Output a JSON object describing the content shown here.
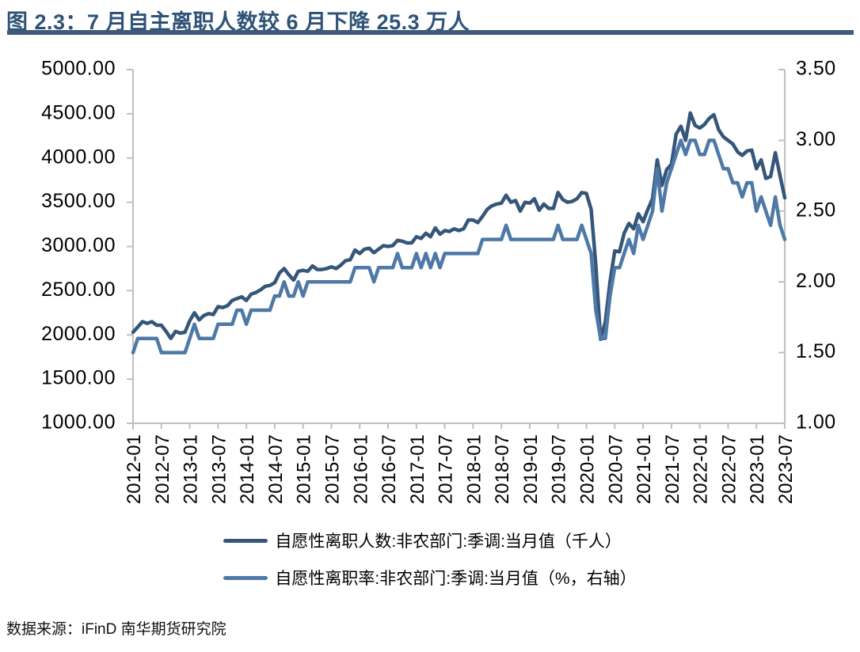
{
  "header": {
    "title": "图 2.3：7 月自主离职人数较 6 月下降 25.3 万人"
  },
  "chart_data": {
    "type": "line",
    "x_start": "2012-01",
    "x_end": "2023-07",
    "x_frequency": "monthly",
    "x_tick_labels": [
      "2012-01",
      "2012-07",
      "2013-01",
      "2013-07",
      "2014-01",
      "2014-07",
      "2015-01",
      "2015-07",
      "2016-01",
      "2016-07",
      "2017-01",
      "2017-07",
      "2018-01",
      "2018-07",
      "2019-01",
      "2019-07",
      "2020-01",
      "2020-07",
      "2021-01",
      "2021-07",
      "2022-01",
      "2022-07",
      "2023-01",
      "2023-07"
    ],
    "left_axis": {
      "min": 1000,
      "max": 5000,
      "step": 500,
      "tick_labels": [
        "5000.00",
        "4500.00",
        "4000.00",
        "3500.00",
        "3000.00",
        "2500.00",
        "2000.00",
        "1500.00",
        "1000.00"
      ]
    },
    "right_axis": {
      "min": 1.0,
      "max": 3.5,
      "step": 0.5,
      "tick_labels": [
        "3.50",
        "3.00",
        "2.50",
        "2.00",
        "1.50",
        "1.00"
      ]
    },
    "grid": false,
    "legend_position": "bottom",
    "series": [
      {
        "name": "自愿性离职人数:非农部门:季调:当月值（千人）",
        "axis": "left",
        "color": "#35567A",
        "values": [
          2030,
          2090,
          2150,
          2130,
          2150,
          2110,
          2110,
          2040,
          1960,
          2040,
          2020,
          2030,
          2160,
          2250,
          2170,
          2220,
          2240,
          2230,
          2320,
          2310,
          2330,
          2390,
          2410,
          2430,
          2390,
          2460,
          2480,
          2510,
          2550,
          2560,
          2590,
          2700,
          2750,
          2680,
          2620,
          2720,
          2730,
          2720,
          2780,
          2740,
          2740,
          2750,
          2770,
          2750,
          2790,
          2840,
          2850,
          2960,
          2920,
          2970,
          2980,
          2930,
          2970,
          3010,
          3000,
          3010,
          3070,
          3060,
          3040,
          3040,
          3110,
          3090,
          3150,
          3110,
          3210,
          3140,
          3180,
          3170,
          3200,
          3180,
          3200,
          3300,
          3300,
          3270,
          3340,
          3420,
          3460,
          3480,
          3490,
          3580,
          3500,
          3520,
          3400,
          3500,
          3490,
          3540,
          3410,
          3480,
          3430,
          3430,
          3610,
          3530,
          3500,
          3510,
          3540,
          3610,
          3600,
          3420,
          2790,
          1950,
          2150,
          2600,
          2950,
          2940,
          3150,
          3260,
          3200,
          3370,
          3280,
          3420,
          3540,
          3980,
          3690,
          3870,
          3930,
          4270,
          4360,
          4200,
          4510,
          4370,
          4340,
          4380,
          4450,
          4490,
          4320,
          4240,
          4200,
          4160,
          4070,
          4030,
          4080,
          4090,
          3880,
          3980,
          3770,
          3790,
          4060,
          3800,
          3550
        ]
      },
      {
        "name": "自愿性离职率:非农部门:季调:当月值（%，右轴）",
        "axis": "right",
        "color": "#4E79A7",
        "values": [
          1.5,
          1.6,
          1.6,
          1.6,
          1.6,
          1.6,
          1.5,
          1.5,
          1.5,
          1.5,
          1.5,
          1.5,
          1.6,
          1.7,
          1.6,
          1.6,
          1.6,
          1.6,
          1.7,
          1.7,
          1.7,
          1.7,
          1.8,
          1.8,
          1.7,
          1.8,
          1.8,
          1.8,
          1.8,
          1.8,
          1.9,
          1.9,
          2.0,
          1.9,
          1.9,
          2.0,
          1.9,
          2.0,
          2.0,
          2.0,
          2.0,
          2.0,
          2.0,
          2.0,
          2.0,
          2.0,
          2.0,
          2.1,
          2.1,
          2.1,
          2.1,
          2.0,
          2.1,
          2.1,
          2.1,
          2.1,
          2.2,
          2.1,
          2.1,
          2.1,
          2.2,
          2.1,
          2.2,
          2.1,
          2.2,
          2.1,
          2.2,
          2.2,
          2.2,
          2.2,
          2.2,
          2.2,
          2.2,
          2.2,
          2.3,
          2.3,
          2.3,
          2.3,
          2.3,
          2.4,
          2.3,
          2.3,
          2.3,
          2.3,
          2.3,
          2.3,
          2.3,
          2.3,
          2.3,
          2.3,
          2.4,
          2.3,
          2.3,
          2.3,
          2.3,
          2.4,
          2.3,
          2.2,
          1.8,
          1.6,
          1.6,
          1.9,
          2.1,
          2.1,
          2.2,
          2.3,
          2.2,
          2.4,
          2.3,
          2.4,
          2.5,
          2.8,
          2.5,
          2.7,
          2.8,
          2.9,
          3.0,
          2.9,
          3.0,
          3.0,
          2.9,
          2.9,
          3.0,
          3.0,
          2.9,
          2.8,
          2.8,
          2.7,
          2.7,
          2.6,
          2.7,
          2.7,
          2.5,
          2.6,
          2.5,
          2.4,
          2.6,
          2.4,
          2.3
        ]
      }
    ]
  },
  "footer": {
    "source": "数据来源：iFinD 南华期货研究院"
  },
  "colors": {
    "title_text": "#2F5377",
    "title_bar": "#3D5A78",
    "axis_line": "#BFBFBF",
    "tick_text": "#000000"
  }
}
